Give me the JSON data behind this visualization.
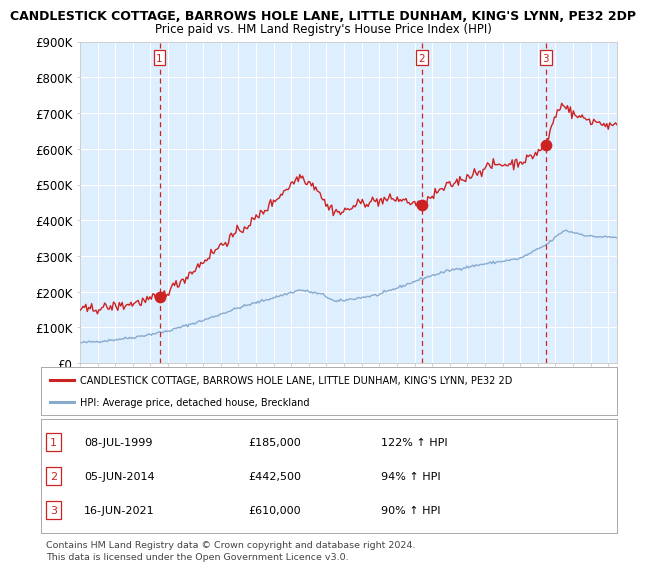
{
  "title": "CANDLESTICK COTTAGE, BARROWS HOLE LANE, LITTLE DUNHAM, KING'S LYNN, PE32 2DP",
  "subtitle": "Price paid vs. HM Land Registry's House Price Index (HPI)",
  "legend_line1": "CANDLESTICK COTTAGE, BARROWS HOLE LANE, LITTLE DUNHAM, KING'S LYNN, PE32 2D",
  "legend_line2": "HPI: Average price, detached house, Breckland",
  "ylabel_ticks": [
    "£0",
    "£100K",
    "£200K",
    "£300K",
    "£400K",
    "£500K",
    "£600K",
    "£700K",
    "£800K",
    "£900K"
  ],
  "ytick_vals": [
    0,
    100000,
    200000,
    300000,
    400000,
    500000,
    600000,
    700000,
    800000,
    900000
  ],
  "sale1_date": "08-JUL-1999",
  "sale1_price": 185000,
  "sale1_price_str": "£185,000",
  "sale1_pct": "122% ↑ HPI",
  "sale2_date": "05-JUN-2014",
  "sale2_price": 442500,
  "sale2_price_str": "£442,500",
  "sale2_pct": "94% ↑ HPI",
  "sale3_date": "16-JUN-2021",
  "sale3_price": 610000,
  "sale3_price_str": "£610,000",
  "sale3_pct": "90% ↑ HPI",
  "sale1_x": 1999.52,
  "sale2_x": 2014.42,
  "sale3_x": 2021.46,
  "bg_color": "#ddeeff",
  "red_line_color": "#cc2222",
  "blue_line_color": "#88aacc",
  "marker_color": "#cc2222",
  "dashed_color": "#cc2222",
  "footer1": "Contains HM Land Registry data © Crown copyright and database right 2024.",
  "footer2": "This data is licensed under the Open Government Licence v3.0.",
  "xmin": 1995.0,
  "xmax": 2025.5,
  "ymin": 0,
  "ymax": 900000
}
